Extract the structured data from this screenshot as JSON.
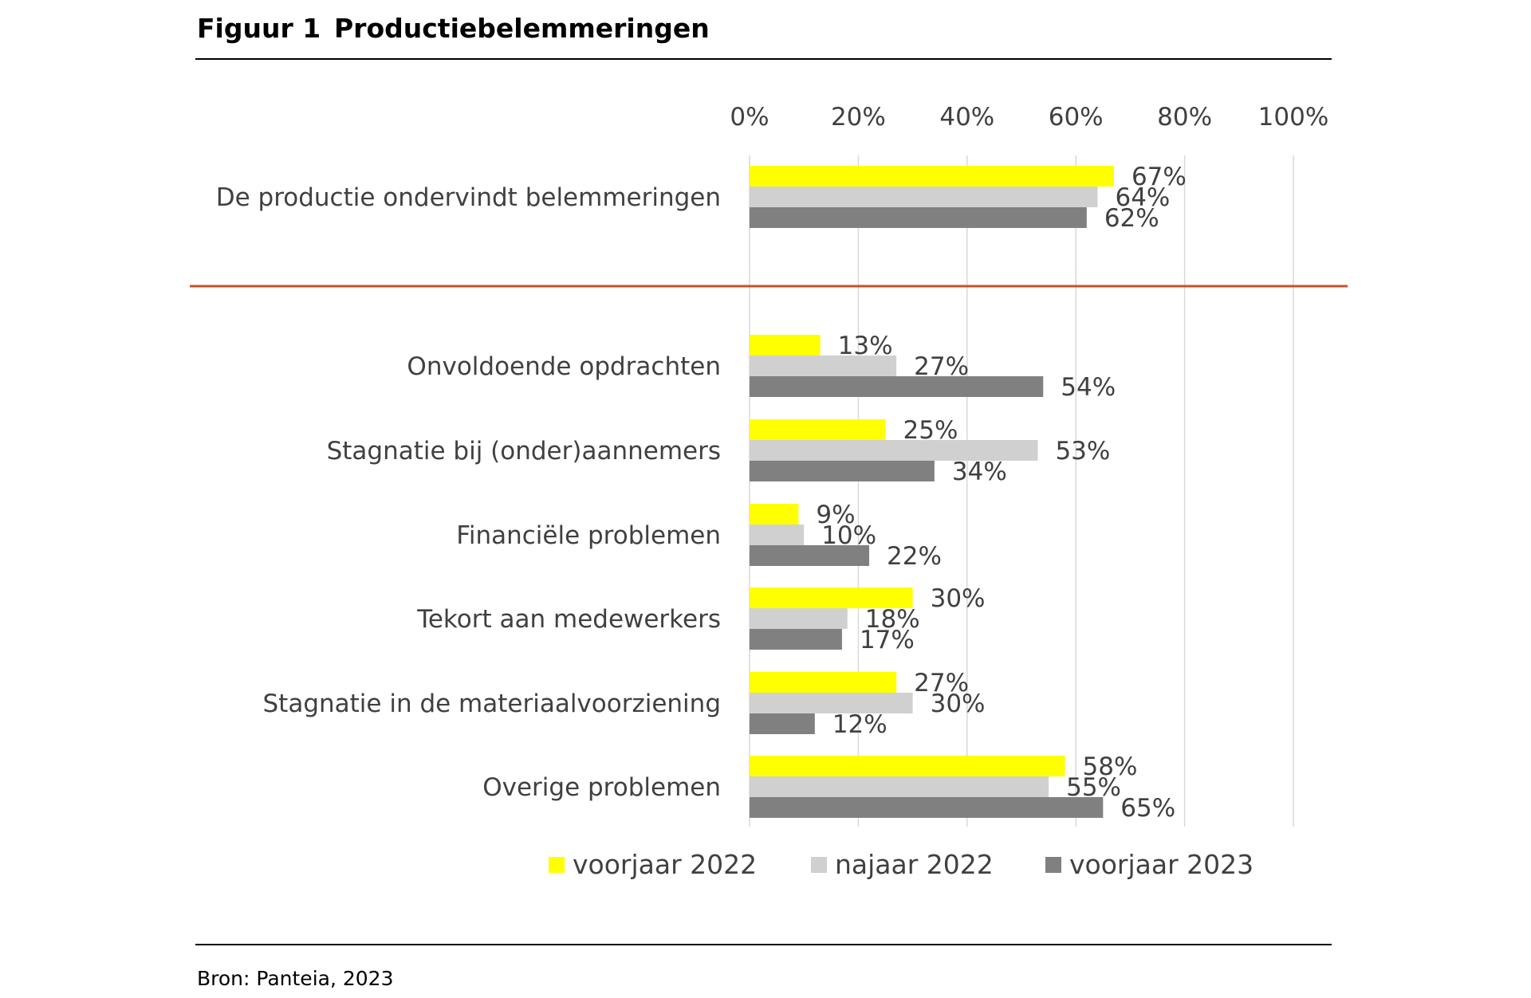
{
  "figure": {
    "number": "Figuur 1",
    "title": "Productiebelemmeringen",
    "source": "Bron: Panteia, 2023"
  },
  "colors": {
    "voorjaar_2022": "#FFFF00",
    "najaar_2022": "#D0D0D0",
    "voorjaar_2023": "#808080",
    "divider": "#C8502A",
    "gridline": "#D9D9D9",
    "text": "#404040"
  },
  "chart_data": {
    "type": "bar",
    "orientation": "horizontal",
    "title": "Productiebelemmeringen",
    "xlim": [
      0,
      100
    ],
    "x_ticks": [
      "0%",
      "20%",
      "40%",
      "60%",
      "80%",
      "100%"
    ],
    "x_tick_values": [
      0,
      20,
      40,
      60,
      80,
      100
    ],
    "x_axis_position": "top",
    "grid": true,
    "legend_position": "bottom",
    "categories": [
      "De productie ondervindt belemmeringen",
      "Onvoldoende opdrachten",
      "Stagnatie bij (onder)aannemers",
      "Financiële problemen",
      "Tekort aan medewerkers",
      "Stagnatie in de materiaalvoorziening",
      "Overige problemen"
    ],
    "series": [
      {
        "name": "voorjaar 2022",
        "values": [
          67,
          13,
          25,
          9,
          30,
          27,
          58
        ],
        "labels": [
          "67%",
          "13%",
          "25%",
          "9%",
          "30%",
          "27%",
          "58%"
        ]
      },
      {
        "name": "najaar 2022",
        "values": [
          64,
          27,
          53,
          10,
          18,
          30,
          55
        ],
        "labels": [
          "64%",
          "27%",
          "53%",
          "10%",
          "18%",
          "30%",
          "55%"
        ]
      },
      {
        "name": "voorjaar 2023",
        "values": [
          62,
          54,
          34,
          22,
          17,
          12,
          65
        ],
        "labels": [
          "62%",
          "54%",
          "34%",
          "22%",
          "17%",
          "12%",
          "65%"
        ]
      }
    ]
  }
}
